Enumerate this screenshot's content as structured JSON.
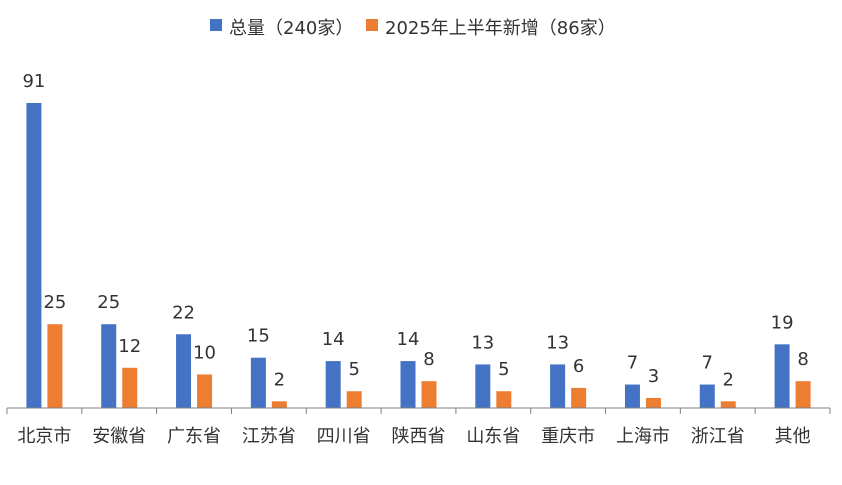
{
  "colors": {
    "series_0": "#4472C4",
    "series_1": "#ED7D31",
    "axis": "#808080",
    "text": "#333333",
    "background": "#FFFFFF"
  },
  "chart_data": {
    "type": "bar",
    "title": "",
    "xlabel": "",
    "ylabel": "",
    "categories": [
      "北京市",
      "安徽省",
      "广东省",
      "江苏省",
      "四川省",
      "陕西省",
      "山东省",
      "重庆市",
      "上海市",
      "浙江省",
      "其他"
    ],
    "series": [
      {
        "name": "总量（240家）",
        "values": [
          91,
          25,
          22,
          15,
          14,
          14,
          13,
          13,
          7,
          7,
          19
        ]
      },
      {
        "name": "2025年上半年新增（86家）",
        "values": [
          25,
          12,
          10,
          2,
          5,
          8,
          5,
          6,
          3,
          2,
          8
        ]
      }
    ],
    "ylim": [
      0,
      91
    ],
    "grid": false,
    "legend_position": "top",
    "data_labels": true
  }
}
